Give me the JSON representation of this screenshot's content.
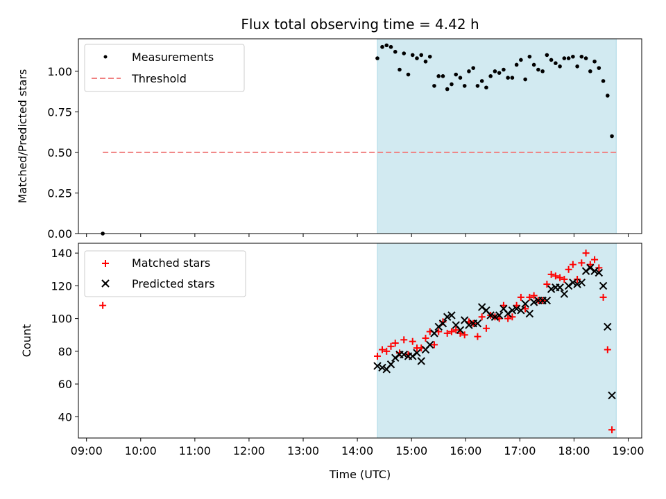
{
  "chart_data": {
    "title": "Flux total observing time = 4.42 h",
    "xlabel": "Time (UTC)",
    "x_ticks": [
      "09:00",
      "10:00",
      "11:00",
      "12:00",
      "13:00",
      "14:00",
      "15:00",
      "16:00",
      "17:00",
      "18:00",
      "19:00"
    ],
    "observing_window": {
      "start": 14.37,
      "end": 18.78,
      "color": "#add8e6"
    },
    "top": {
      "type": "scatter",
      "ylabel": "Matched/Predicted stars",
      "ylim": [
        0,
        1.2
      ],
      "y_ticks": [
        "0.00",
        "0.25",
        "0.50",
        "0.75",
        "1.00"
      ],
      "legend_position": "upper-left",
      "threshold": {
        "name": "Threshold",
        "value": 0.5,
        "x_range": [
          9.3,
          18.78
        ],
        "color": "#f08080"
      },
      "series": [
        {
          "name": "Measurements",
          "color": "#000000",
          "points": [
            [
              9.3,
              0.0
            ],
            [
              14.37,
              1.08
            ],
            [
              14.46,
              1.15
            ],
            [
              14.54,
              1.16
            ],
            [
              14.62,
              1.15
            ],
            [
              14.7,
              1.12
            ],
            [
              14.78,
              1.01
            ],
            [
              14.86,
              1.11
            ],
            [
              14.94,
              0.98
            ],
            [
              15.02,
              1.1
            ],
            [
              15.1,
              1.08
            ],
            [
              15.18,
              1.1
            ],
            [
              15.26,
              1.06
            ],
            [
              15.34,
              1.09
            ],
            [
              15.42,
              0.91
            ],
            [
              15.5,
              0.97
            ],
            [
              15.58,
              0.97
            ],
            [
              15.66,
              0.89
            ],
            [
              15.74,
              0.92
            ],
            [
              15.82,
              0.98
            ],
            [
              15.9,
              0.96
            ],
            [
              15.98,
              0.91
            ],
            [
              16.06,
              1.0
            ],
            [
              16.14,
              1.02
            ],
            [
              16.22,
              0.91
            ],
            [
              16.3,
              0.94
            ],
            [
              16.38,
              0.9
            ],
            [
              16.46,
              0.97
            ],
            [
              16.54,
              1.0
            ],
            [
              16.62,
              0.99
            ],
            [
              16.7,
              1.01
            ],
            [
              16.78,
              0.96
            ],
            [
              16.86,
              0.96
            ],
            [
              16.94,
              1.04
            ],
            [
              17.02,
              1.07
            ],
            [
              17.1,
              0.95
            ],
            [
              17.18,
              1.09
            ],
            [
              17.26,
              1.04
            ],
            [
              17.34,
              1.01
            ],
            [
              17.42,
              1.0
            ],
            [
              17.5,
              1.1
            ],
            [
              17.58,
              1.07
            ],
            [
              17.66,
              1.05
            ],
            [
              17.74,
              1.03
            ],
            [
              17.82,
              1.08
            ],
            [
              17.9,
              1.08
            ],
            [
              17.98,
              1.09
            ],
            [
              18.06,
              1.03
            ],
            [
              18.14,
              1.09
            ],
            [
              18.22,
              1.08
            ],
            [
              18.3,
              1.0
            ],
            [
              18.38,
              1.06
            ],
            [
              18.46,
              1.02
            ],
            [
              18.54,
              0.94
            ],
            [
              18.62,
              0.85
            ],
            [
              18.7,
              0.6
            ]
          ]
        }
      ]
    },
    "bottom": {
      "type": "scatter",
      "ylabel": "Count",
      "ylim": [
        27,
        146
      ],
      "y_ticks": [
        "40",
        "60",
        "80",
        "100",
        "120",
        "140"
      ],
      "legend_position": "upper-left",
      "series": [
        {
          "name": "Matched stars",
          "color": "#ff0000",
          "marker": "plus",
          "points": [
            [
              9.3,
              108
            ],
            [
              14.37,
              77
            ],
            [
              14.46,
              81
            ],
            [
              14.54,
              80
            ],
            [
              14.62,
              83
            ],
            [
              14.7,
              85
            ],
            [
              14.78,
              79
            ],
            [
              14.86,
              87
            ],
            [
              14.94,
              78
            ],
            [
              15.02,
              86
            ],
            [
              15.1,
              82
            ],
            [
              15.18,
              82
            ],
            [
              15.26,
              88
            ],
            [
              15.34,
              92
            ],
            [
              15.42,
              84
            ],
            [
              15.5,
              92
            ],
            [
              15.58,
              98
            ],
            [
              15.66,
              91
            ],
            [
              15.74,
              92
            ],
            [
              15.82,
              93
            ],
            [
              15.9,
              91
            ],
            [
              15.98,
              90
            ],
            [
              16.06,
              98
            ],
            [
              16.14,
              97
            ],
            [
              16.22,
              89
            ],
            [
              16.3,
              101
            ],
            [
              16.38,
              94
            ],
            [
              16.46,
              102
            ],
            [
              16.54,
              101
            ],
            [
              16.62,
              100
            ],
            [
              16.7,
              108
            ],
            [
              16.78,
              100
            ],
            [
              16.86,
              101
            ],
            [
              16.94,
              108
            ],
            [
              17.02,
              113
            ],
            [
              17.1,
              106
            ],
            [
              17.18,
              113
            ],
            [
              17.26,
              114
            ],
            [
              17.34,
              111
            ],
            [
              17.42,
              111
            ],
            [
              17.5,
              121
            ],
            [
              17.58,
              127
            ],
            [
              17.66,
              126
            ],
            [
              17.74,
              125
            ],
            [
              17.82,
              124
            ],
            [
              17.9,
              130
            ],
            [
              17.98,
              133
            ],
            [
              18.06,
              124
            ],
            [
              18.14,
              134
            ],
            [
              18.22,
              140
            ],
            [
              18.3,
              133
            ],
            [
              18.38,
              136
            ],
            [
              18.46,
              131
            ],
            [
              18.54,
              113
            ],
            [
              18.62,
              81
            ],
            [
              18.7,
              32
            ]
          ]
        },
        {
          "name": "Predicted stars",
          "color": "#000000",
          "marker": "x",
          "points": [
            [
              14.37,
              71
            ],
            [
              14.46,
              70
            ],
            [
              14.54,
              69
            ],
            [
              14.62,
              72
            ],
            [
              14.7,
              76
            ],
            [
              14.78,
              78
            ],
            [
              14.86,
              78
            ],
            [
              14.94,
              77
            ],
            [
              15.02,
              77
            ],
            [
              15.1,
              79
            ],
            [
              15.18,
              74
            ],
            [
              15.26,
              81
            ],
            [
              15.34,
              84
            ],
            [
              15.42,
              91
            ],
            [
              15.5,
              95
            ],
            [
              15.58,
              97
            ],
            [
              15.66,
              101
            ],
            [
              15.74,
              102
            ],
            [
              15.82,
              96
            ],
            [
              15.9,
              93
            ],
            [
              15.98,
              99
            ],
            [
              16.06,
              96
            ],
            [
              16.14,
              97
            ],
            [
              16.22,
              97
            ],
            [
              16.3,
              107
            ],
            [
              16.38,
              105
            ],
            [
              16.46,
              102
            ],
            [
              16.54,
              101
            ],
            [
              16.62,
              102
            ],
            [
              16.7,
              106
            ],
            [
              16.78,
              103
            ],
            [
              16.86,
              105
            ],
            [
              16.94,
              106
            ],
            [
              17.02,
              105
            ],
            [
              17.1,
              109
            ],
            [
              17.18,
              103
            ],
            [
              17.26,
              110
            ],
            [
              17.34,
              111
            ],
            [
              17.42,
              111
            ],
            [
              17.5,
              111
            ],
            [
              17.58,
              118
            ],
            [
              17.66,
              119
            ],
            [
              17.74,
              119
            ],
            [
              17.82,
              115
            ],
            [
              17.9,
              120
            ],
            [
              17.98,
              122
            ],
            [
              18.06,
              121
            ],
            [
              18.14,
              122
            ],
            [
              18.22,
              129
            ],
            [
              18.3,
              131
            ],
            [
              18.38,
              129
            ],
            [
              18.46,
              128
            ],
            [
              18.54,
              120
            ],
            [
              18.62,
              95
            ],
            [
              18.7,
              53
            ]
          ]
        }
      ]
    }
  }
}
